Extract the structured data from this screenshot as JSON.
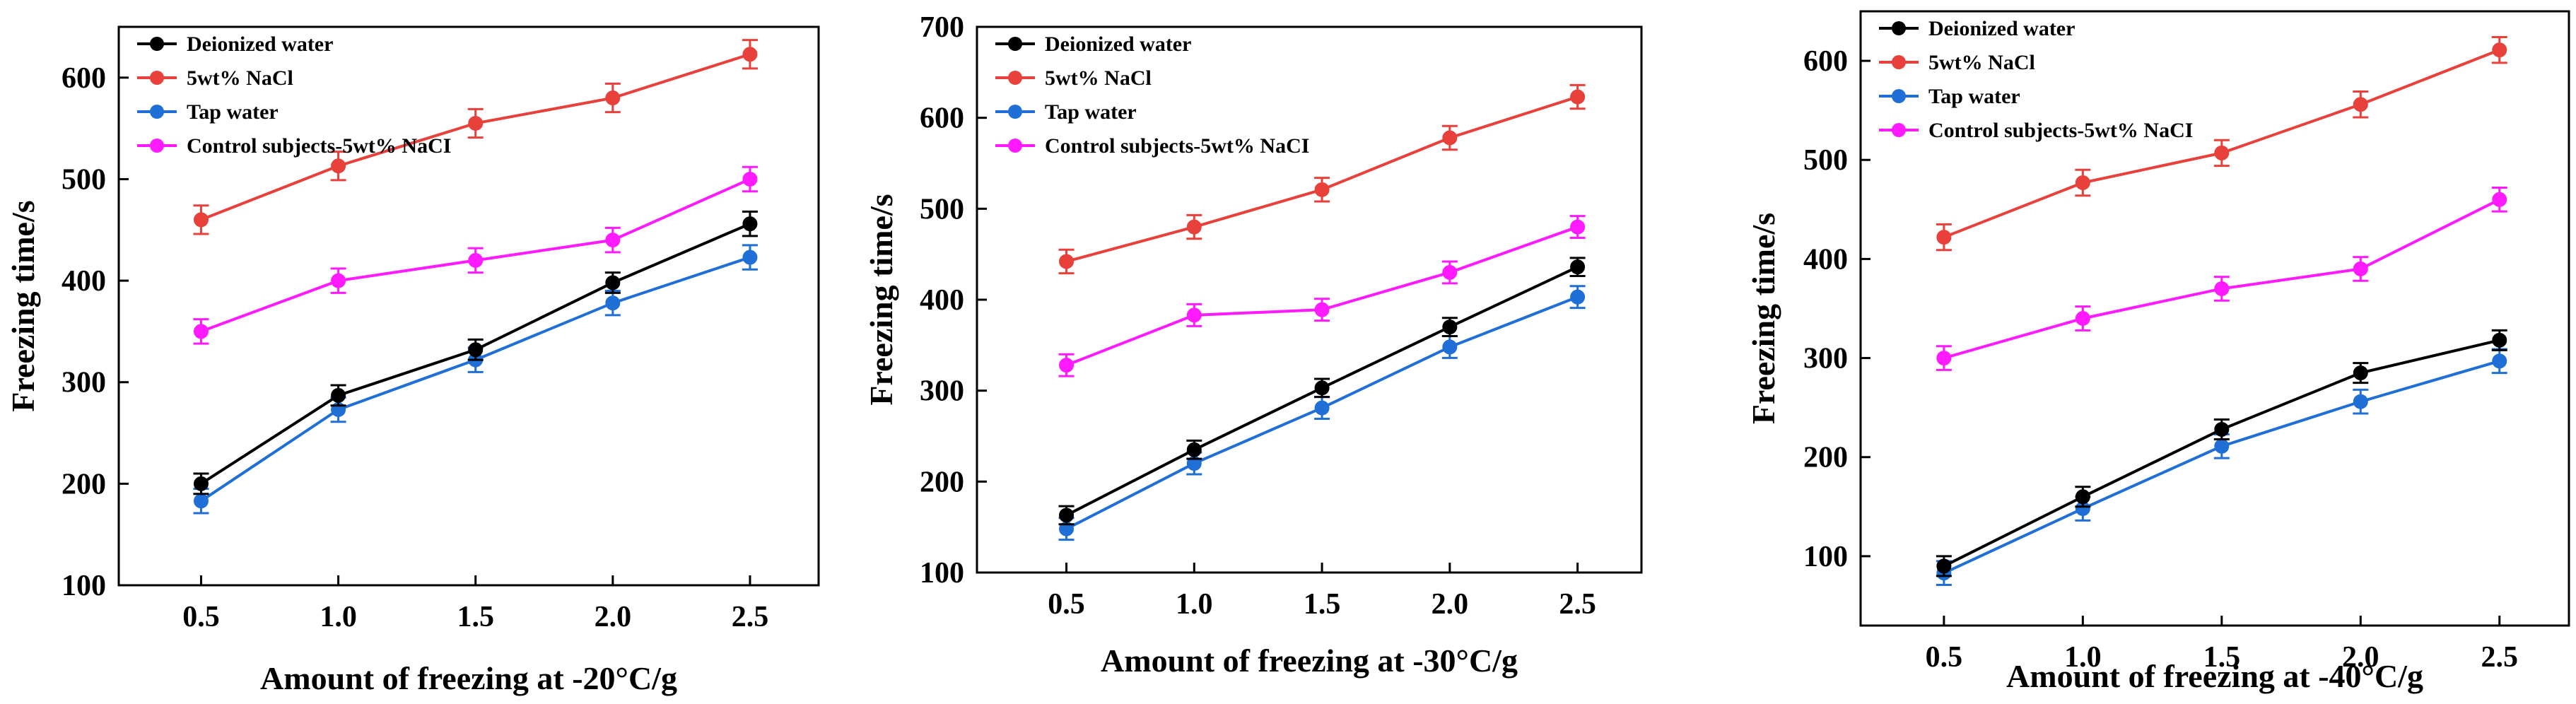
{
  "colors": {
    "deionized": "#000000",
    "nacl": "#e8403a",
    "tap": "#1f6fd6",
    "control": "#ff1aff"
  },
  "legend_labels": [
    "Deionized water",
    "5wt% NaCl",
    "Tap water",
    "Control subjects-5wt% NaCI"
  ],
  "chart_data": [
    {
      "type": "line",
      "xlabel": "Amount of freezing at  -20°C/g",
      "ylabel": "Freezing time/s",
      "x": [
        0.5,
        1.0,
        1.5,
        2.0,
        2.5
      ],
      "xticks": [
        "0.5",
        "1.0",
        "1.5",
        "2.0",
        "2.5"
      ],
      "xlim": [
        0.2,
        2.75
      ],
      "ylim": [
        100,
        650
      ],
      "yticks": [
        100,
        200,
        300,
        400,
        500,
        600
      ],
      "legend_position": "top-left",
      "series": [
        {
          "name": "Deionized water",
          "color_key": "deionized",
          "values": [
            200,
            287,
            332,
            398,
            456
          ],
          "error": [
            10,
            10,
            10,
            10,
            12
          ]
        },
        {
          "name": "5wt% NaCl",
          "color_key": "nacl",
          "values": [
            460,
            513,
            555,
            580,
            623
          ],
          "error": [
            14,
            14,
            14,
            14,
            14
          ]
        },
        {
          "name": "Tap water",
          "color_key": "tap",
          "values": [
            183,
            273,
            322,
            378,
            423
          ],
          "error": [
            12,
            12,
            12,
            12,
            12
          ]
        },
        {
          "name": "Control subjects-5wt% NaCI",
          "color_key": "control",
          "values": [
            350,
            400,
            420,
            440,
            500
          ],
          "error": [
            12,
            12,
            12,
            12,
            12
          ]
        }
      ]
    },
    {
      "type": "line",
      "xlabel": "Amount of freezing at  -30°C/g",
      "ylabel": "Freezing time/s",
      "x": [
        0.5,
        1.0,
        1.5,
        2.0,
        2.5
      ],
      "xticks": [
        "0.5",
        "1.0",
        "1.5",
        "2.0",
        "2.5"
      ],
      "xlim": [
        0.15,
        2.75
      ],
      "ylim": [
        100,
        700
      ],
      "yticks": [
        100,
        200,
        300,
        400,
        500,
        600,
        700
      ],
      "legend_position": "top-left",
      "series": [
        {
          "name": "Deionized water",
          "color_key": "deionized",
          "values": [
            163,
            235,
            303,
            370,
            436
          ],
          "error": [
            10,
            10,
            10,
            10,
            10
          ]
        },
        {
          "name": "5wt% NaCl",
          "color_key": "nacl",
          "values": [
            442,
            480,
            521,
            578,
            623
          ],
          "error": [
            13,
            13,
            13,
            13,
            13
          ]
        },
        {
          "name": "Tap water",
          "color_key": "tap",
          "values": [
            148,
            220,
            281,
            348,
            403
          ],
          "error": [
            12,
            12,
            12,
            12,
            12
          ]
        },
        {
          "name": "Control subjects-5wt% NaCI",
          "color_key": "control",
          "values": [
            328,
            383,
            389,
            430,
            480
          ],
          "error": [
            12,
            12,
            12,
            12,
            12
          ]
        }
      ]
    },
    {
      "type": "line",
      "xlabel": "Amount of freezing at -40°C/g",
      "ylabel": "Freezing time/s",
      "x": [
        0.5,
        1.0,
        1.5,
        2.0,
        2.5
      ],
      "xticks": [
        "0.5",
        "1.0",
        "1.5",
        "2.0",
        "2.5"
      ],
      "xlim": [
        0.2,
        2.75
      ],
      "ylim": [
        30,
        650
      ],
      "yticks": [
        100,
        200,
        300,
        400,
        500,
        600
      ],
      "legend_position": "top-left",
      "series": [
        {
          "name": "Deionized water",
          "color_key": "deionized",
          "values": [
            90,
            160,
            228,
            285,
            318
          ],
          "error": [
            10,
            10,
            10,
            10,
            10
          ]
        },
        {
          "name": "5wt% NaCl",
          "color_key": "nacl",
          "values": [
            422,
            477,
            507,
            556,
            611
          ],
          "error": [
            13,
            13,
            13,
            13,
            13
          ]
        },
        {
          "name": "Tap water",
          "color_key": "tap",
          "values": [
            83,
            148,
            211,
            256,
            297
          ],
          "error": [
            12,
            12,
            12,
            12,
            12
          ]
        },
        {
          "name": "Control subjects-5wt% NaCI",
          "color_key": "control",
          "values": [
            300,
            340,
            370,
            390,
            460
          ],
          "error": [
            12,
            12,
            12,
            12,
            12
          ]
        }
      ]
    }
  ]
}
